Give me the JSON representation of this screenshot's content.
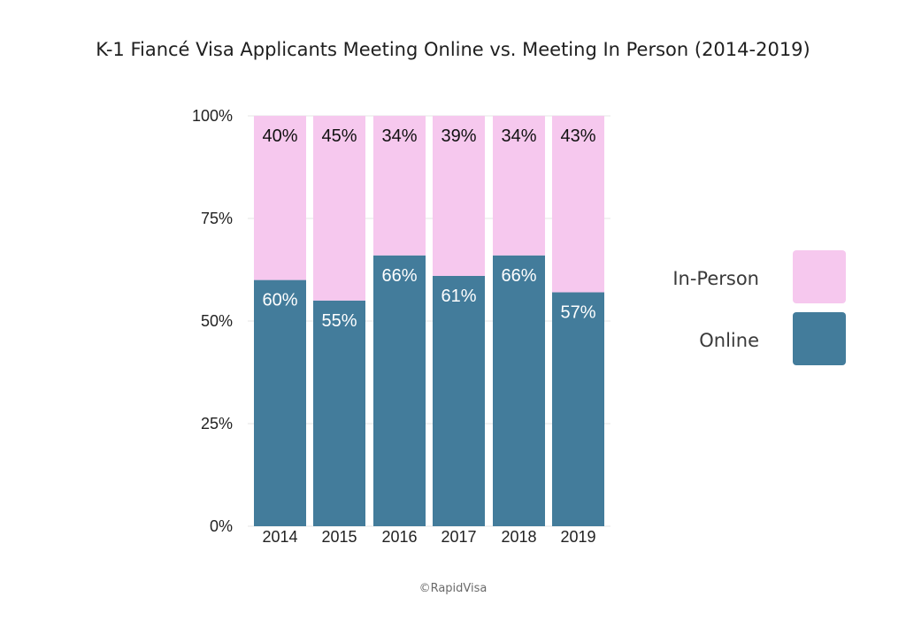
{
  "chart_data": {
    "type": "bar",
    "stacked": true,
    "title": "K-1 Fiancé Visa Applicants Meeting Online vs. Meeting In Person (2014-2019)",
    "categories": [
      "2014",
      "2015",
      "2016",
      "2017",
      "2018",
      "2019"
    ],
    "series": [
      {
        "name": "Online",
        "values": [
          60,
          55,
          66,
          61,
          66,
          57
        ],
        "labels": [
          "60%",
          "55%",
          "66%",
          "61%",
          "66%",
          "57%"
        ],
        "color": "#437c9b",
        "label_color": "#ffffff"
      },
      {
        "name": "In-Person",
        "values": [
          40,
          45,
          34,
          39,
          34,
          43
        ],
        "labels": [
          "40%",
          "45%",
          "34%",
          "39%",
          "34%",
          "43%"
        ],
        "color": "#f6c8ee",
        "label_color": "#111111"
      }
    ],
    "y_ticks": [
      0,
      25,
      50,
      75,
      100
    ],
    "y_tick_labels": [
      "0%",
      "25%",
      "50%",
      "75%",
      "100%"
    ],
    "ylim": [
      0,
      100
    ],
    "xlabel": "",
    "ylabel": "",
    "grid": true,
    "legend": {
      "position": "right",
      "items": [
        {
          "label": "In-Person",
          "color": "#f6c8ee"
        },
        {
          "label": "Online",
          "color": "#437c9b"
        }
      ]
    },
    "credit": "©RapidVisa"
  }
}
